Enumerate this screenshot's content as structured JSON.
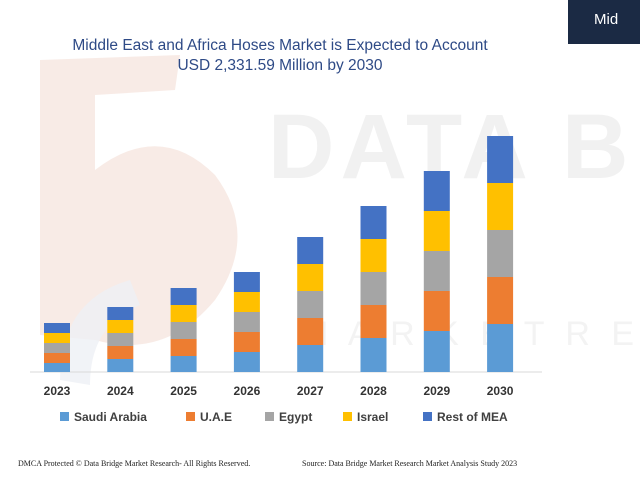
{
  "header": {
    "corner_text": "Mid"
  },
  "watermark": {
    "text_top": "DATA BRI",
    "text_bottom": "M A R K E T   R E S"
  },
  "chart_data": {
    "type": "bar",
    "stacked": true,
    "title_lines": [
      "Middle East and Africa Hoses Market is Expected to Account",
      "USD 2,331.59 Million by 2030"
    ],
    "categories": [
      "2023",
      "2024",
      "2025",
      "2026",
      "2027",
      "2028",
      "2029",
      "2030"
    ],
    "series": [
      {
        "name": "Saudi Arabia",
        "color": "#5b9bd5",
        "values": [
          9,
          13,
          16,
          20,
          27,
          34,
          41,
          48
        ]
      },
      {
        "name": "U.A.E",
        "color": "#ed7d31",
        "values": [
          10,
          13,
          17,
          20,
          27,
          33,
          40,
          47
        ]
      },
      {
        "name": "Egypt",
        "color": "#a5a5a5",
        "values": [
          10,
          13,
          17,
          20,
          27,
          33,
          40,
          47
        ]
      },
      {
        "name": "Israel",
        "color": "#ffc000",
        "values": [
          10,
          13,
          17,
          20,
          27,
          33,
          40,
          47
        ]
      },
      {
        "name": "Rest of MEA",
        "color": "#4472c4",
        "values": [
          10,
          13,
          17,
          20,
          27,
          33,
          40,
          47
        ]
      }
    ],
    "y_axis_shown": false,
    "grid": false,
    "legend_position": "bottom"
  },
  "footer": {
    "left": "DMCA Protected © Data Bridge Market Research- All Rights Reserved.",
    "right": "Source: Data Bridge Market Research Market Analysis Study 2023"
  }
}
